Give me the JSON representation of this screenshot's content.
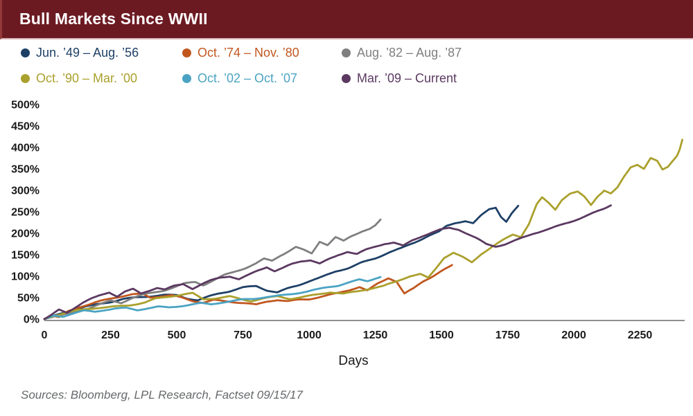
{
  "header": {
    "title": "Bull Markets Since WWII",
    "bar_color": "#6c1a22"
  },
  "footer": {
    "sources": "Sources: Bloomberg, LPL Research, Factset 09/15/17"
  },
  "chart_data": {
    "type": "line",
    "title": "Bull Markets Since WWII",
    "xlabel": "Days",
    "ylabel": "",
    "xlim": [
      0,
      2500
    ],
    "ylim": [
      0,
      500
    ],
    "grid": false,
    "legend_position": "top",
    "x_ticks": [
      0,
      250,
      500,
      750,
      1000,
      1250,
      1500,
      1750,
      2000,
      2250
    ],
    "y_ticks": [
      0,
      50,
      100,
      150,
      200,
      250,
      300,
      350,
      400,
      450,
      500
    ],
    "y_tick_suffix": "%",
    "axis_color": "#8f8f8f",
    "tick_text_color": "#1a1a1a",
    "series": [
      {
        "name": "Jun. ’49 – Aug. ’56",
        "color": "#1e4066",
        "points": [
          [
            0,
            0
          ],
          [
            40,
            8
          ],
          [
            90,
            16
          ],
          [
            150,
            26
          ],
          [
            200,
            32
          ],
          [
            250,
            38
          ],
          [
            300,
            46
          ],
          [
            350,
            50
          ],
          [
            400,
            53
          ],
          [
            450,
            56
          ],
          [
            500,
            55
          ],
          [
            540,
            47
          ],
          [
            580,
            42
          ],
          [
            620,
            50
          ],
          [
            660,
            57
          ],
          [
            700,
            62
          ],
          [
            750,
            71
          ],
          [
            800,
            75
          ],
          [
            840,
            66
          ],
          [
            880,
            62
          ],
          [
            920,
            72
          ],
          [
            960,
            80
          ],
          [
            1000,
            90
          ],
          [
            1050,
            100
          ],
          [
            1100,
            112
          ],
          [
            1150,
            120
          ],
          [
            1200,
            132
          ],
          [
            1250,
            141
          ],
          [
            1300,
            155
          ],
          [
            1350,
            166
          ],
          [
            1400,
            180
          ],
          [
            1450,
            196
          ],
          [
            1490,
            206
          ],
          [
            1520,
            220
          ],
          [
            1550,
            227
          ],
          [
            1590,
            232
          ],
          [
            1620,
            226
          ],
          [
            1650,
            244
          ],
          [
            1680,
            258
          ],
          [
            1705,
            262
          ],
          [
            1725,
            240
          ],
          [
            1745,
            228
          ],
          [
            1765,
            246
          ],
          [
            1790,
            264
          ]
        ]
      },
      {
        "name": "Oct. ’74 – Nov. ’80",
        "color": "#c1571f",
        "points": [
          [
            0,
            0
          ],
          [
            25,
            9
          ],
          [
            55,
            4
          ],
          [
            90,
            18
          ],
          [
            130,
            27
          ],
          [
            170,
            33
          ],
          [
            210,
            40
          ],
          [
            250,
            46
          ],
          [
            290,
            51
          ],
          [
            330,
            56
          ],
          [
            370,
            58
          ],
          [
            400,
            50
          ],
          [
            440,
            54
          ],
          [
            480,
            57
          ],
          [
            520,
            52
          ],
          [
            560,
            45
          ],
          [
            600,
            41
          ],
          [
            640,
            47
          ],
          [
            680,
            44
          ],
          [
            720,
            41
          ],
          [
            760,
            38
          ],
          [
            800,
            34
          ],
          [
            840,
            41
          ],
          [
            880,
            45
          ],
          [
            920,
            42
          ],
          [
            960,
            46
          ],
          [
            1000,
            48
          ],
          [
            1050,
            55
          ],
          [
            1100,
            62
          ],
          [
            1150,
            70
          ],
          [
            1190,
            77
          ],
          [
            1220,
            68
          ],
          [
            1260,
            84
          ],
          [
            1300,
            96
          ],
          [
            1330,
            87
          ],
          [
            1360,
            58
          ],
          [
            1395,
            70
          ],
          [
            1430,
            86
          ],
          [
            1465,
            97
          ],
          [
            1500,
            110
          ],
          [
            1540,
            126
          ]
        ]
      },
      {
        "name": "Aug. ’82 – Aug. ’87",
        "color": "#7f7f7f",
        "points": [
          [
            0,
            0
          ],
          [
            50,
            10
          ],
          [
            100,
            17
          ],
          [
            150,
            25
          ],
          [
            200,
            36
          ],
          [
            250,
            45
          ],
          [
            290,
            39
          ],
          [
            330,
            50
          ],
          [
            370,
            57
          ],
          [
            410,
            61
          ],
          [
            450,
            66
          ],
          [
            490,
            74
          ],
          [
            530,
            83
          ],
          [
            570,
            87
          ],
          [
            600,
            80
          ],
          [
            640,
            92
          ],
          [
            680,
            104
          ],
          [
            720,
            112
          ],
          [
            760,
            120
          ],
          [
            800,
            130
          ],
          [
            830,
            140
          ],
          [
            860,
            135
          ],
          [
            890,
            146
          ],
          [
            920,
            155
          ],
          [
            950,
            165
          ],
          [
            980,
            158
          ],
          [
            1010,
            150
          ],
          [
            1040,
            178
          ],
          [
            1070,
            170
          ],
          [
            1100,
            188
          ],
          [
            1130,
            180
          ],
          [
            1160,
            192
          ],
          [
            1200,
            204
          ],
          [
            1230,
            210
          ],
          [
            1250,
            218
          ],
          [
            1270,
            232
          ]
        ]
      },
      {
        "name": "Oct. ’90 – Mar. ’00",
        "color": "#aaa02c",
        "points": [
          [
            0,
            0
          ],
          [
            40,
            7
          ],
          [
            90,
            15
          ],
          [
            140,
            21
          ],
          [
            200,
            26
          ],
          [
            260,
            29
          ],
          [
            320,
            32
          ],
          [
            380,
            38
          ],
          [
            420,
            46
          ],
          [
            470,
            50
          ],
          [
            520,
            54
          ],
          [
            560,
            57
          ],
          [
            600,
            43
          ],
          [
            650,
            46
          ],
          [
            700,
            51
          ],
          [
            740,
            46
          ],
          [
            780,
            42
          ],
          [
            830,
            49
          ],
          [
            880,
            54
          ],
          [
            930,
            48
          ],
          [
            980,
            52
          ],
          [
            1030,
            57
          ],
          [
            1080,
            62
          ],
          [
            1130,
            58
          ],
          [
            1180,
            64
          ],
          [
            1230,
            71
          ],
          [
            1280,
            78
          ],
          [
            1330,
            90
          ],
          [
            1380,
            103
          ],
          [
            1420,
            108
          ],
          [
            1450,
            99
          ],
          [
            1480,
            122
          ],
          [
            1510,
            146
          ],
          [
            1545,
            157
          ],
          [
            1580,
            146
          ],
          [
            1615,
            133
          ],
          [
            1650,
            152
          ],
          [
            1690,
            168
          ],
          [
            1730,
            183
          ],
          [
            1770,
            197
          ],
          [
            1800,
            192
          ],
          [
            1830,
            222
          ],
          [
            1860,
            268
          ],
          [
            1880,
            284
          ],
          [
            1905,
            272
          ],
          [
            1930,
            257
          ],
          [
            1955,
            280
          ],
          [
            1985,
            294
          ],
          [
            2015,
            298
          ],
          [
            2040,
            286
          ],
          [
            2065,
            267
          ],
          [
            2090,
            287
          ],
          [
            2115,
            300
          ],
          [
            2140,
            292
          ],
          [
            2165,
            305
          ],
          [
            2190,
            330
          ],
          [
            2215,
            352
          ],
          [
            2240,
            358
          ],
          [
            2265,
            348
          ],
          [
            2290,
            372
          ],
          [
            2315,
            365
          ],
          [
            2335,
            345
          ],
          [
            2355,
            352
          ],
          [
            2375,
            368
          ],
          [
            2390,
            380
          ],
          [
            2400,
            395
          ],
          [
            2410,
            418
          ]
        ]
      },
      {
        "name": "Oct. ’02 – Oct. ’07",
        "color": "#4ba3c3",
        "points": [
          [
            0,
            0
          ],
          [
            35,
            7
          ],
          [
            70,
            4
          ],
          [
            110,
            11
          ],
          [
            150,
            17
          ],
          [
            190,
            15
          ],
          [
            230,
            20
          ],
          [
            270,
            24
          ],
          [
            310,
            26
          ],
          [
            350,
            22
          ],
          [
            390,
            27
          ],
          [
            430,
            31
          ],
          [
            470,
            29
          ],
          [
            510,
            32
          ],
          [
            550,
            35
          ],
          [
            590,
            38
          ],
          [
            630,
            35
          ],
          [
            670,
            39
          ],
          [
            710,
            42
          ],
          [
            750,
            46
          ],
          [
            790,
            48
          ],
          [
            830,
            52
          ],
          [
            870,
            55
          ],
          [
            910,
            59
          ],
          [
            950,
            63
          ],
          [
            990,
            67
          ],
          [
            1030,
            72
          ],
          [
            1070,
            77
          ],
          [
            1110,
            80
          ],
          [
            1150,
            86
          ],
          [
            1190,
            92
          ],
          [
            1220,
            88
          ],
          [
            1245,
            93
          ],
          [
            1270,
            98
          ]
        ]
      },
      {
        "name": "Mar. ’09 – Current",
        "color": "#5b3961",
        "points": [
          [
            0,
            0
          ],
          [
            25,
            10
          ],
          [
            55,
            24
          ],
          [
            85,
            18
          ],
          [
            115,
            29
          ],
          [
            145,
            40
          ],
          [
            175,
            48
          ],
          [
            210,
            56
          ],
          [
            245,
            63
          ],
          [
            275,
            53
          ],
          [
            305,
            64
          ],
          [
            335,
            70
          ],
          [
            365,
            60
          ],
          [
            395,
            67
          ],
          [
            425,
            74
          ],
          [
            455,
            70
          ],
          [
            490,
            79
          ],
          [
            525,
            84
          ],
          [
            560,
            73
          ],
          [
            595,
            83
          ],
          [
            630,
            92
          ],
          [
            665,
            98
          ],
          [
            700,
            100
          ],
          [
            735,
            92
          ],
          [
            770,
            101
          ],
          [
            805,
            111
          ],
          [
            840,
            119
          ],
          [
            870,
            109
          ],
          [
            900,
            116
          ],
          [
            935,
            126
          ],
          [
            970,
            133
          ],
          [
            1005,
            136
          ],
          [
            1040,
            128
          ],
          [
            1075,
            139
          ],
          [
            1110,
            149
          ],
          [
            1145,
            157
          ],
          [
            1180,
            151
          ],
          [
            1215,
            161
          ],
          [
            1250,
            168
          ],
          [
            1285,
            174
          ],
          [
            1320,
            176
          ],
          [
            1355,
            168
          ],
          [
            1390,
            181
          ],
          [
            1425,
            190
          ],
          [
            1460,
            198
          ],
          [
            1495,
            206
          ],
          [
            1530,
            211
          ],
          [
            1565,
            208
          ],
          [
            1600,
            198
          ],
          [
            1635,
            188
          ],
          [
            1670,
            176
          ],
          [
            1705,
            171
          ],
          [
            1740,
            176
          ],
          [
            1775,
            184
          ],
          [
            1810,
            192
          ],
          [
            1845,
            200
          ],
          [
            1880,
            206
          ],
          [
            1915,
            212
          ],
          [
            1950,
            219
          ],
          [
            1985,
            226
          ],
          [
            2020,
            234
          ],
          [
            2055,
            243
          ],
          [
            2090,
            252
          ],
          [
            2115,
            258
          ],
          [
            2140,
            265
          ]
        ]
      }
    ]
  }
}
